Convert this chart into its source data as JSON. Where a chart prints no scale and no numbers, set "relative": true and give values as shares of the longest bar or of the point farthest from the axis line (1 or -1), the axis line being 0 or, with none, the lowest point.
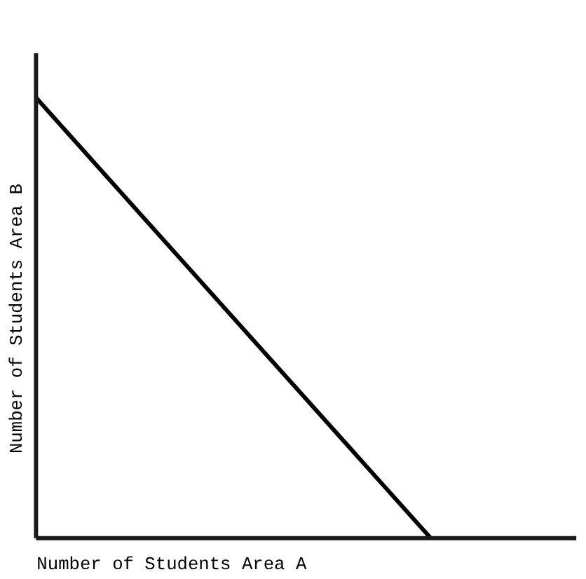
{
  "chart_data": {
    "type": "line",
    "relative": true,
    "xlabel": "Number of Students  Area A",
    "ylabel": "Number of Students  Area B",
    "categories": [
      null,
      null
    ],
    "series": [
      {
        "color": "#000000",
        "values": [
          1,
          0
        ]
      }
    ],
    "grid": false,
    "marker": "none",
    "line_style": "solid"
  }
}
